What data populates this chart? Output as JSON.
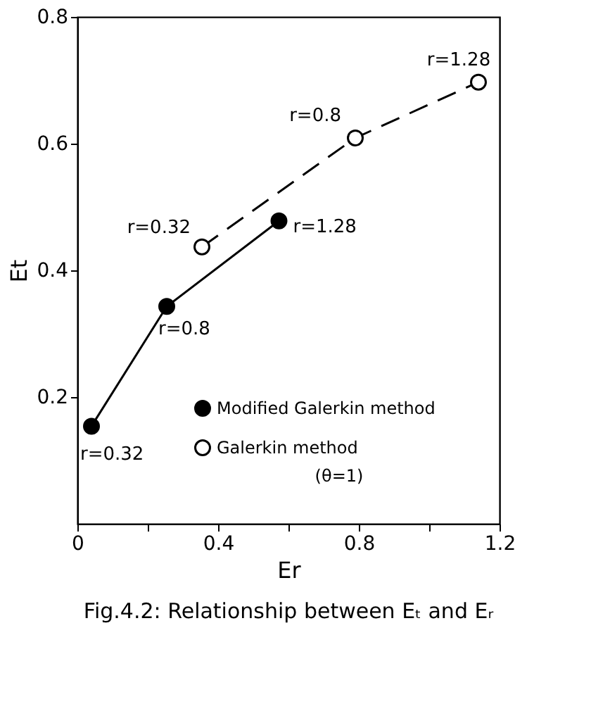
{
  "chart_data": {
    "type": "line",
    "xlabel": "Er",
    "ylabel": "Et",
    "series": [
      {
        "name": "Modified Galerkin method",
        "color": "#000000",
        "line_style": "solid",
        "x": [
          0.04,
          0.254,
          0.573
        ],
        "values": [
          0.154,
          0.343,
          0.478
        ]
      },
      {
        "name": "Galerkin method",
        "color": "#000000",
        "line_style": "dashed",
        "x": [
          0.354,
          0.79,
          1.14
        ],
        "values": [
          0.437,
          0.609,
          0.697
        ]
      }
    ],
    "xlim": [
      0,
      1.2
    ],
    "ylim": [
      0,
      0.8
    ],
    "xticks": [
      0,
      {
        "value": 0.2,
        "label": null
      },
      0.4,
      {
        "value": 0.6,
        "label": null
      },
      0.8,
      {
        "value": 1.0,
        "label": null
      },
      1.2
    ],
    "yticks": [
      0.2,
      0.4,
      0.6,
      0.8
    ],
    "grid": false,
    "marker": "circle",
    "legend": "bottom right",
    "annotations": [
      {
        "text": "r=0.32",
        "x": 0.04,
        "y": 0.154
      },
      {
        "text": "r=0.8",
        "x": 0.254,
        "y": 0.343
      },
      {
        "text": "r=1.28",
        "x": 0.573,
        "y": 0.478
      },
      {
        "text": "r=0.32",
        "x": 0.354,
        "y": 0.437
      },
      {
        "text": "r=0.8",
        "x": 0.79,
        "y": 0.609
      },
      {
        "text": "r=1.28",
        "x": 1.14,
        "y": 0.697
      },
      "(θ=1)",
      "Fig.4.2: Relationship between Eₜ and Eᵣ"
    ]
  }
}
